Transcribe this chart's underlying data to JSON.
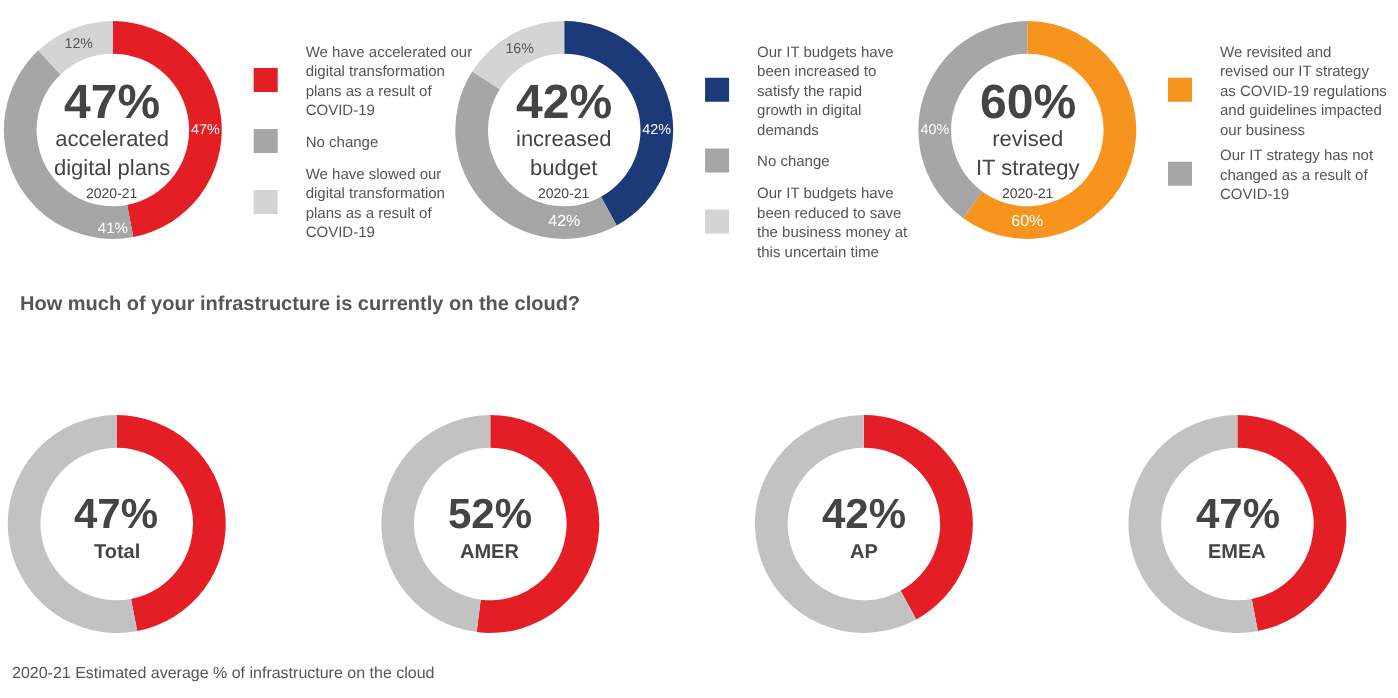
{
  "chart_data": [
    {
      "type": "donut",
      "title": "accelerated\ndigital plans",
      "subtitle": "2020-21",
      "annotations": [
        "47%"
      ],
      "legend": "right",
      "categories": [
        "We have accelerated our digital transformation plans as a result of COVID-19",
        "No change",
        "We have slowed our digital transformation plans as a result of COVID-19"
      ],
      "values": [
        47,
        41,
        12
      ],
      "value_labels": [
        "47%",
        "41%",
        "12%"
      ],
      "colors": [
        "#e31e24",
        "#a6a6a6",
        "#d4d4d4"
      ]
    },
    {
      "type": "donut",
      "title": "increased\nbudget",
      "subtitle": "2020-21",
      "annotations": [
        "42%"
      ],
      "legend": "right",
      "categories": [
        "Our IT budgets have been increased to satisfy the rapid growth in digital demands",
        "No change",
        "Our IT budgets have been reduced to save the business money at this uncertain time"
      ],
      "values": [
        42,
        42,
        16
      ],
      "value_labels": [
        "42%",
        "42%",
        "16%"
      ],
      "colors": [
        "#1c3a78",
        "#a6a6a6",
        "#d4d4d4"
      ]
    },
    {
      "type": "donut",
      "title": "revised\nIT strategy",
      "subtitle": "2020-21",
      "annotations": [
        "60%"
      ],
      "legend": "right",
      "categories": [
        "We revisited and revised our IT strategy as COVID-19 regulations and guidelines impacted our business",
        "Our IT strategy has not changed as a result of COVID-19"
      ],
      "values": [
        60,
        40
      ],
      "value_labels": [
        "60%",
        "40%"
      ],
      "colors": [
        "#f7941d",
        "#a6a6a6"
      ]
    },
    {
      "type": "other",
      "title": "How much of your infrastructure is currently on the cloud?",
      "annotations": [
        "2020-21 Estimated average % of infrastructure on the cloud"
      ]
    },
    {
      "type": "donut",
      "title": "Total",
      "annotations": [
        "47%"
      ],
      "categories": [
        null,
        null
      ],
      "values": [
        47,
        53
      ],
      "colors": [
        "#e31e24",
        "#c2c2c2"
      ]
    },
    {
      "type": "donut",
      "title": "AMER",
      "annotations": [
        "52%"
      ],
      "categories": [
        null,
        null
      ],
      "values": [
        52,
        48
      ],
      "colors": [
        "#e31e24",
        "#c2c2c2"
      ]
    },
    {
      "type": "donut",
      "title": "AP",
      "annotations": [
        "42%"
      ],
      "categories": [
        null,
        null
      ],
      "values": [
        42,
        58
      ],
      "colors": [
        "#e31e24",
        "#c2c2c2"
      ]
    },
    {
      "type": "donut",
      "title": "EMEA",
      "annotations": [
        "47%"
      ],
      "categories": [
        null,
        null
      ],
      "values": [
        47,
        53
      ],
      "colors": [
        "#e31e24",
        "#c2c2c2"
      ]
    }
  ]
}
